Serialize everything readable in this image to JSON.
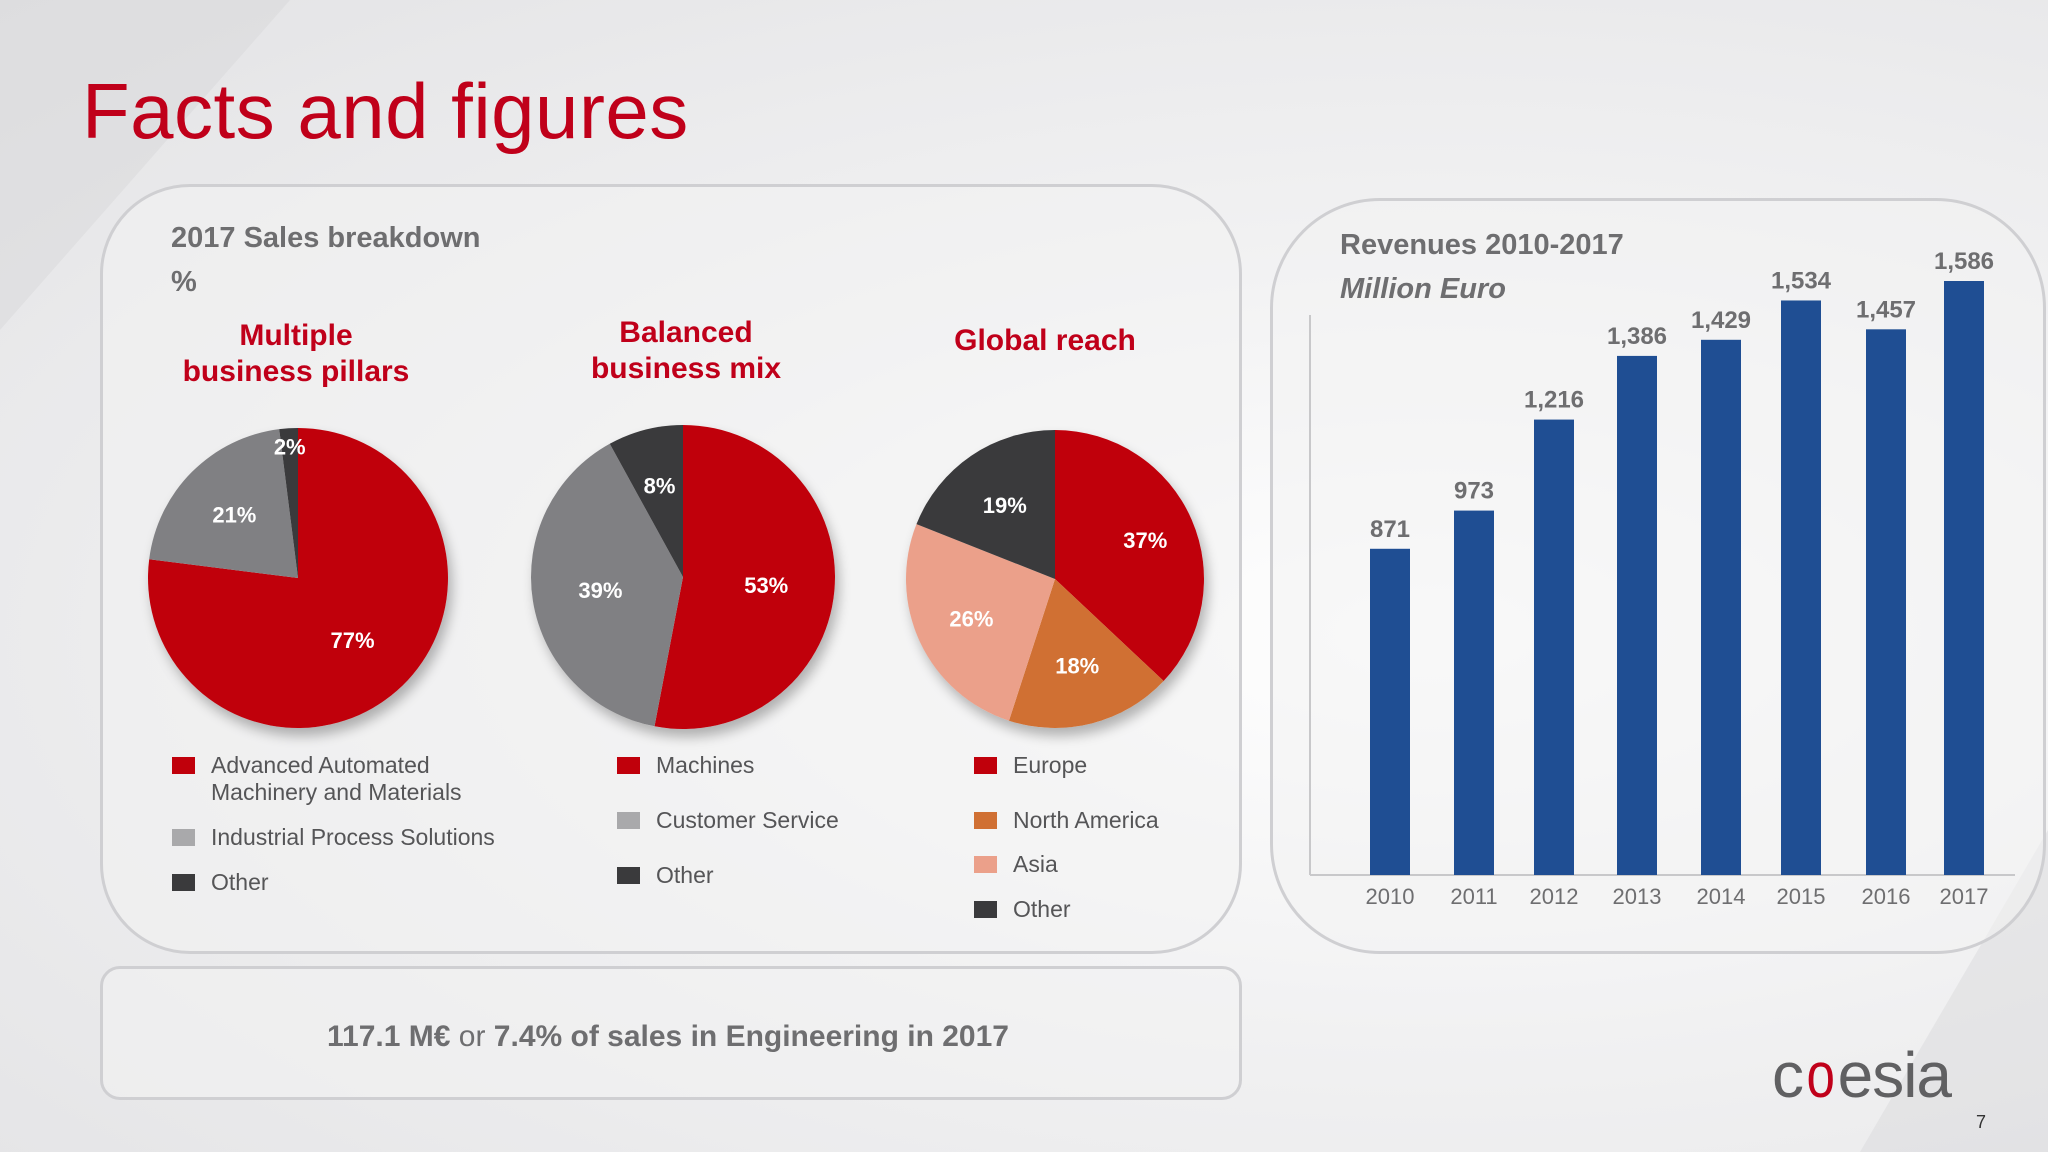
{
  "slide_title": "Facts and figures",
  "sales": {
    "title": "2017 Sales breakdown",
    "unit": "%",
    "pies": [
      {
        "title_line1": "Multiple",
        "title_line2": "business pillars",
        "slices": [
          {
            "label": "Advanced Automated Machinery and Materials",
            "value": 77,
            "text": "77%",
            "color": "#c0000b"
          },
          {
            "label": "Industrial Process Solutions",
            "value": 21,
            "text": "21%",
            "color": "#808083"
          },
          {
            "label": "Other",
            "value": 2,
            "text": "2%",
            "color": "#3a3a3c"
          }
        ],
        "legend": [
          {
            "line1": "Advanced Automated",
            "line2": "Machinery and Materials",
            "color": "#c0000b"
          },
          {
            "line1": "Industrial Process Solutions",
            "line2": "",
            "color": "#a9a9ab"
          },
          {
            "line1": "Other",
            "line2": "",
            "color": "#3a3a3c"
          }
        ]
      },
      {
        "title_line1": "Balanced",
        "title_line2": "business mix",
        "slices": [
          {
            "label": "Machines",
            "value": 53,
            "text": "53%",
            "color": "#c0000b"
          },
          {
            "label": "Customer Service",
            "value": 39,
            "text": "39%",
            "color": "#808083"
          },
          {
            "label": "Other",
            "value": 8,
            "text": "8%",
            "color": "#3a3a3c"
          }
        ],
        "legend": [
          {
            "line1": "Machines",
            "line2": "",
            "color": "#c0000b"
          },
          {
            "line1": "Customer Service",
            "line2": "",
            "color": "#a9a9ab"
          },
          {
            "line1": "Other",
            "line2": "",
            "color": "#3a3a3c"
          }
        ]
      },
      {
        "title_line1": "Global reach",
        "title_line2": "",
        "slices": [
          {
            "label": "Europe",
            "value": 37,
            "text": "37%",
            "color": "#c0000b"
          },
          {
            "label": "North America",
            "value": 18,
            "text": "18%",
            "color": "#d07033"
          },
          {
            "label": "Asia",
            "value": 26,
            "text": "26%",
            "color": "#eba08a"
          },
          {
            "label": "Other",
            "value": 19,
            "text": "19%",
            "color": "#3a3a3c"
          }
        ],
        "legend": [
          {
            "line1": "Europe",
            "line2": "",
            "color": "#c0000b"
          },
          {
            "line1": "North America",
            "line2": "",
            "color": "#d07033"
          },
          {
            "line1": "Asia",
            "line2": "",
            "color": "#eba08a"
          },
          {
            "line1": "Other",
            "line2": "",
            "color": "#3a3a3c"
          }
        ]
      }
    ]
  },
  "revenues": {
    "title": "Revenues 2010-2017",
    "subtitle": "Million Euro"
  },
  "chart_data": {
    "type": "bar",
    "categories": [
      "2010",
      "2011",
      "2012",
      "2013",
      "2014",
      "2015",
      "2016",
      "2017"
    ],
    "values": [
      871,
      973,
      1216,
      1386,
      1429,
      1534,
      1457,
      1586
    ],
    "data_labels": [
      "871",
      "973",
      "1,216",
      "1,386",
      "1,429",
      "1,534",
      "1,457",
      "1,586"
    ],
    "title": "Revenues 2010-2017",
    "ylabel": "",
    "xlabel": "",
    "ylim": [
      0,
      1586
    ],
    "grid": false,
    "bar_color": "#1f4e93"
  },
  "bottom": {
    "part1": "117.1 M€",
    "part2": " or ",
    "part3": "7.4% of sales in Engineering in 2017"
  },
  "logo": {
    "text_a": "c",
    "text_o": "o",
    "text_b": "esia"
  },
  "page_number": "7"
}
